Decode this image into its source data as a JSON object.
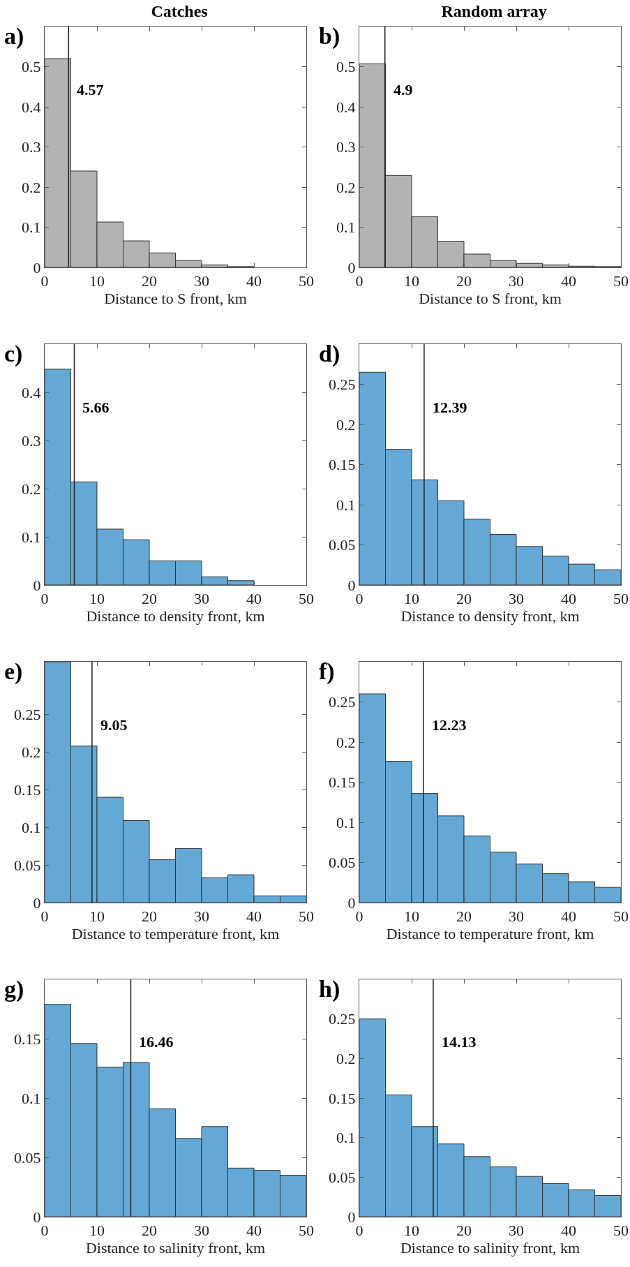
{
  "chart_data": [
    {
      "type": "histogram",
      "title": "Catches",
      "xlabel": "Distance to S front, km",
      "annotations": [
        "a)"
      ],
      "bins": [
        0,
        5,
        10,
        15,
        20,
        25,
        30,
        35,
        40,
        45,
        50
      ],
      "values": [
        0.52,
        0.24,
        0.113,
        0.066,
        0.036,
        0.017,
        0.006,
        0.002,
        0,
        0
      ],
      "color": "#b3b3b3",
      "xlim": [
        0,
        50
      ],
      "xticks": [
        0,
        10,
        20,
        30,
        40,
        50
      ],
      "ylim": [
        0,
        0.6
      ],
      "yticks": [
        0,
        0.1,
        0.2,
        0.3,
        0.4,
        0.5
      ],
      "ref_lines": [
        {
          "axis": "x",
          "value": 4.57,
          "label": "4.57"
        }
      ],
      "grid": false
    },
    {
      "type": "histogram",
      "title": "Random array",
      "xlabel": "Distance to S front, km",
      "annotations": [
        "b)"
      ],
      "bins": [
        0,
        5,
        10,
        15,
        20,
        25,
        30,
        35,
        40,
        45,
        50
      ],
      "values": [
        0.507,
        0.229,
        0.126,
        0.065,
        0.033,
        0.017,
        0.01,
        0.006,
        0.003,
        0.002
      ],
      "color": "#b3b3b3",
      "xlim": [
        0,
        50
      ],
      "xticks": [
        0,
        10,
        20,
        30,
        40,
        50
      ],
      "ylim": [
        0,
        0.6
      ],
      "yticks": [
        0,
        0.1,
        0.2,
        0.3,
        0.4,
        0.5
      ],
      "ref_lines": [
        {
          "axis": "x",
          "value": 4.9,
          "label": "4.9"
        }
      ],
      "grid": false
    },
    {
      "type": "histogram",
      "xlabel": "Distance to density front, km",
      "annotations": [
        "c)"
      ],
      "bins": [
        0,
        5,
        10,
        15,
        20,
        25,
        30,
        35,
        40,
        45,
        50
      ],
      "values": [
        0.448,
        0.214,
        0.116,
        0.094,
        0.05,
        0.05,
        0.017,
        0.009,
        0,
        0
      ],
      "color": "#64a8d6",
      "xlim": [
        0,
        50
      ],
      "xticks": [
        0,
        10,
        20,
        30,
        40,
        50
      ],
      "ylim": [
        0,
        0.5
      ],
      "yticks": [
        0,
        0.1,
        0.2,
        0.3,
        0.4
      ],
      "ref_lines": [
        {
          "axis": "x",
          "value": 5.66,
          "label": "5.66"
        }
      ],
      "grid": false
    },
    {
      "type": "histogram",
      "xlabel": "Distance to density front, km",
      "annotations": [
        "d)"
      ],
      "bins": [
        0,
        5,
        10,
        15,
        20,
        25,
        30,
        35,
        40,
        45,
        50
      ],
      "values": [
        0.265,
        0.169,
        0.131,
        0.105,
        0.082,
        0.063,
        0.048,
        0.036,
        0.026,
        0.019
      ],
      "color": "#64a8d6",
      "xlim": [
        0,
        50
      ],
      "xticks": [
        0,
        10,
        20,
        30,
        40,
        50
      ],
      "ylim": [
        0,
        0.3
      ],
      "yticks": [
        0,
        0.05,
        0.1,
        0.15,
        0.2,
        0.25
      ],
      "ref_lines": [
        {
          "axis": "x",
          "value": 12.39,
          "label": "12.39"
        }
      ],
      "grid": false
    },
    {
      "type": "histogram",
      "xlabel": "Distance to temperature front, km",
      "annotations": [
        "e)"
      ],
      "bins": [
        0,
        5,
        10,
        15,
        20,
        25,
        30,
        35,
        40,
        45,
        50
      ],
      "values": [
        0.32,
        0.208,
        0.14,
        0.109,
        0.057,
        0.072,
        0.033,
        0.037,
        0.009,
        0.009
      ],
      "color": "#64a8d6",
      "xlim": [
        0,
        50
      ],
      "xticks": [
        0,
        10,
        20,
        30,
        40,
        50
      ],
      "ylim": [
        0,
        0.32
      ],
      "yticks": [
        0,
        0.05,
        0.1,
        0.15,
        0.2,
        0.25
      ],
      "ref_lines": [
        {
          "axis": "x",
          "value": 9.05,
          "label": "9.05"
        }
      ],
      "grid": false
    },
    {
      "type": "histogram",
      "xlabel": "Distance to temperature front, km",
      "annotations": [
        "f)"
      ],
      "bins": [
        0,
        5,
        10,
        15,
        20,
        25,
        30,
        35,
        40,
        45,
        50
      ],
      "values": [
        0.26,
        0.176,
        0.136,
        0.108,
        0.083,
        0.063,
        0.048,
        0.036,
        0.026,
        0.019
      ],
      "color": "#64a8d6",
      "xlim": [
        0,
        50
      ],
      "xticks": [
        0,
        10,
        20,
        30,
        40,
        50
      ],
      "ylim": [
        0,
        0.3
      ],
      "yticks": [
        0,
        0.05,
        0.1,
        0.15,
        0.2,
        0.25
      ],
      "ref_lines": [
        {
          "axis": "x",
          "value": 12.23,
          "label": "12.23"
        }
      ],
      "grid": false
    },
    {
      "type": "histogram",
      "xlabel": "Distance to salinity front, km",
      "annotations": [
        "g)"
      ],
      "bins": [
        0,
        5,
        10,
        15,
        20,
        25,
        30,
        35,
        40,
        45,
        50
      ],
      "values": [
        0.179,
        0.146,
        0.126,
        0.13,
        0.091,
        0.066,
        0.076,
        0.041,
        0.039,
        0.035
      ],
      "color": "#64a8d6",
      "xlim": [
        0,
        50
      ],
      "xticks": [
        0,
        10,
        20,
        30,
        40,
        50
      ],
      "ylim": [
        0,
        0.2
      ],
      "yticks": [
        0,
        0.05,
        0.1,
        0.15
      ],
      "ref_lines": [
        {
          "axis": "x",
          "value": 16.46,
          "label": "16.46"
        }
      ],
      "grid": false
    },
    {
      "type": "histogram",
      "xlabel": "Distance to salinity front, km",
      "annotations": [
        "h)"
      ],
      "bins": [
        0,
        5,
        10,
        15,
        20,
        25,
        30,
        35,
        40,
        45,
        50
      ],
      "values": [
        0.25,
        0.154,
        0.114,
        0.092,
        0.076,
        0.063,
        0.051,
        0.042,
        0.034,
        0.027
      ],
      "color": "#64a8d6",
      "xlim": [
        0,
        50
      ],
      "xticks": [
        0,
        10,
        20,
        30,
        40,
        50
      ],
      "ylim": [
        0,
        0.3
      ],
      "yticks": [
        0,
        0.05,
        0.1,
        0.15,
        0.2,
        0.25
      ],
      "ref_lines": [
        {
          "axis": "x",
          "value": 14.13,
          "label": "14.13"
        }
      ],
      "grid": false
    }
  ]
}
